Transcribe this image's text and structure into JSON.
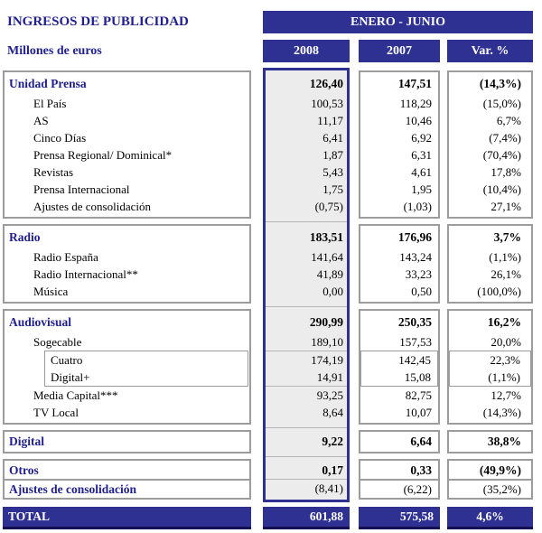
{
  "header": {
    "title": "INGRESOS DE PUBLICIDAD",
    "subtitle": "Millones de euros",
    "period": "ENERO - JUNIO",
    "columns": [
      "2008",
      "2007",
      "Var. %"
    ]
  },
  "colors": {
    "navy": "#2e3192",
    "navy_dark": "#141052",
    "text_navy": "#21208f",
    "box_border": "#9c9c9c",
    "highlight_column_bg": "#ececec"
  },
  "sections": [
    {
      "id": "unidad-prensa",
      "rows": [
        {
          "label": "Unidad Prensa",
          "v2008": "126,40",
          "v2007": "147,51",
          "var": "(14,3%)",
          "level": 0,
          "bold": "all"
        },
        {
          "label": "El País",
          "v2008": "100,53",
          "v2007": "118,29",
          "var": "(15,0%)",
          "level": 1
        },
        {
          "label": "AS",
          "v2008": "11,17",
          "v2007": "10,46",
          "var": "6,7%",
          "level": 1
        },
        {
          "label": "Cinco Días",
          "v2008": "6,41",
          "v2007": "6,92",
          "var": "(7,4%)",
          "level": 1
        },
        {
          "label": "Prensa Regional/ Dominical*",
          "v2008": "1,87",
          "v2007": "6,31",
          "var": "(70,4%)",
          "level": 1
        },
        {
          "label": "Revistas",
          "v2008": "5,43",
          "v2007": "4,61",
          "var": "17,8%",
          "level": 1
        },
        {
          "label": "Prensa Internacional",
          "v2008": "1,75",
          "v2007": "1,95",
          "var": "(10,4%)",
          "level": 1
        },
        {
          "label": "Ajustes de consolidación",
          "v2008": "(0,75)",
          "v2007": "(1,03)",
          "var": "27,1%",
          "level": 1
        }
      ]
    },
    {
      "id": "radio",
      "rows": [
        {
          "label": "Radio",
          "v2008": "183,51",
          "v2007": "176,96",
          "var": "3,7%",
          "level": 0,
          "bold": "all"
        },
        {
          "label": "Radio España",
          "v2008": "141,64",
          "v2007": "143,24",
          "var": "(1,1%)",
          "level": 1
        },
        {
          "label": "Radio Internacional**",
          "v2008": "41,89",
          "v2007": "33,23",
          "var": "26,1%",
          "level": 1
        },
        {
          "label": "Música",
          "v2008": "0,00",
          "v2007": "0,50",
          "var": "(100,0%)",
          "level": 1
        }
      ]
    },
    {
      "id": "audiovisual",
      "rows": [
        {
          "label": "Audiovisual",
          "v2008": "290,99",
          "v2007": "250,35",
          "var": "16,2%",
          "level": 0,
          "bold": "all"
        },
        {
          "label": "Sogecable",
          "v2008": "189,10",
          "v2007": "157,53",
          "var": "20,0%",
          "level": 1
        },
        {
          "label": "Cuatro",
          "v2008": "174,19",
          "v2007": "142,45",
          "var": "22,3%",
          "level": 2,
          "sub": true
        },
        {
          "label": "Digital+",
          "v2008": "14,91",
          "v2007": "15,08",
          "var": "(1,1%)",
          "level": 2,
          "sub": true
        },
        {
          "label": "Media Capital***",
          "v2008": "93,25",
          "v2007": "82,75",
          "var": "12,7%",
          "level": 1
        },
        {
          "label": "TV Local",
          "v2008": "8,64",
          "v2007": "10,07",
          "var": "(14,3%)",
          "level": 1
        }
      ]
    },
    {
      "id": "digital",
      "rows": [
        {
          "label": "Digital",
          "v2008": "9,22",
          "v2007": "6,64",
          "var": "38,8%",
          "level": 0,
          "bold": "all"
        }
      ]
    },
    {
      "id": "otros",
      "rows": [
        {
          "label": "Otros",
          "v2008": "0,17",
          "v2007": "0,33",
          "var": "(49,9%)",
          "level": 0,
          "bold": "all"
        },
        {
          "label": "Ajustes de consolidación",
          "v2008": "(8,41)",
          "v2007": "(6,22)",
          "var": "(35,2%)",
          "level": 0,
          "bold": "label",
          "divider": true
        }
      ]
    }
  ],
  "total": {
    "label": "TOTAL",
    "v2008": "601,88",
    "v2007": "575,58",
    "var": "4,6%"
  }
}
